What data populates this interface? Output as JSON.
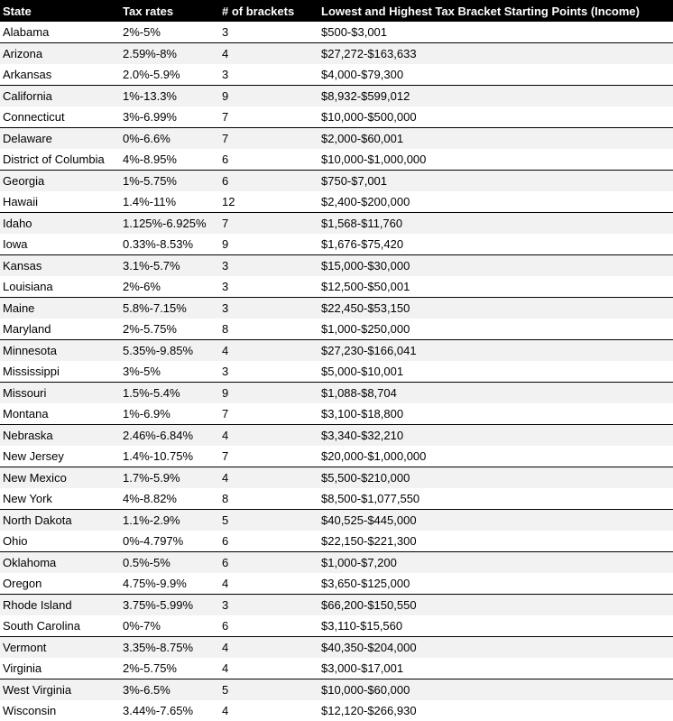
{
  "table": {
    "header": [
      "State",
      "Tax rates",
      "# of brackets",
      "Lowest and Highest Tax Bracket Starting Points (Income)"
    ],
    "rows": [
      [
        "Alabama",
        "2%-5%",
        "3",
        "$500-$3,001"
      ],
      [
        "Arizona",
        "2.59%-8%",
        "4",
        "$27,272-$163,633"
      ],
      [
        "Arkansas",
        "2.0%-5.9%",
        "3",
        "$4,000-$79,300"
      ],
      [
        "California",
        "1%-13.3%",
        "9",
        "$8,932-$599,012"
      ],
      [
        "Connecticut",
        "3%-6.99%",
        "7",
        "$10,000-$500,000"
      ],
      [
        "Delaware",
        "0%-6.6%",
        "7",
        "$2,000-$60,001"
      ],
      [
        "District of Columbia",
        "4%-8.95%",
        "6",
        "$10,000-$1,000,000"
      ],
      [
        "Georgia",
        "1%-5.75%",
        "6",
        "$750-$7,001"
      ],
      [
        "Hawaii",
        "1.4%-11%",
        "12",
        "$2,400-$200,000"
      ],
      [
        "Idaho",
        "1.125%-6.925%",
        "7",
        "$1,568-$11,760"
      ],
      [
        "Iowa",
        "0.33%-8.53%",
        "9",
        "$1,676-$75,420"
      ],
      [
        "Kansas",
        "3.1%-5.7%",
        "3",
        "$15,000-$30,000"
      ],
      [
        "Louisiana",
        "2%-6%",
        "3",
        "$12,500-$50,001"
      ],
      [
        "Maine",
        "5.8%-7.15%",
        "3",
        "$22,450-$53,150"
      ],
      [
        "Maryland",
        "2%-5.75%",
        "8",
        "$1,000-$250,000"
      ],
      [
        "Minnesota",
        "5.35%-9.85%",
        "4",
        "$27,230-$166,041"
      ],
      [
        "Mississippi",
        "3%-5%",
        "3",
        "$5,000-$10,001"
      ],
      [
        "Missouri",
        "1.5%-5.4%",
        "9",
        "$1,088-$8,704"
      ],
      [
        "Montana",
        "1%-6.9%",
        "7",
        "$3,100-$18,800"
      ],
      [
        "Nebraska",
        "2.46%-6.84%",
        "4",
        "$3,340-$32,210"
      ],
      [
        "New Jersey",
        "1.4%-10.75%",
        "7",
        "$20,000-$1,000,000"
      ],
      [
        "New Mexico",
        "1.7%-5.9%",
        "4",
        "$5,500-$210,000"
      ],
      [
        "New York",
        "4%-8.82%",
        "8",
        "$8,500-$1,077,550"
      ],
      [
        "North Dakota",
        "1.1%-2.9%",
        "5",
        "$40,525-$445,000"
      ],
      [
        "Ohio",
        "0%-4.797%",
        "6",
        "$22,150-$221,300"
      ],
      [
        "Oklahoma",
        "0.5%-5%",
        "6",
        "$1,000-$7,200"
      ],
      [
        "Oregon",
        "4.75%-9.9%",
        "4",
        "$3,650-$125,000"
      ],
      [
        "Rhode Island",
        "3.75%-5.99%",
        "3",
        "$66,200-$150,550"
      ],
      [
        "South Carolina",
        "0%-7%",
        "6",
        "$3,110-$15,560"
      ],
      [
        "Vermont",
        "3.35%-8.75%",
        "4",
        "$40,350-$204,000"
      ],
      [
        "Virginia",
        "2%-5.75%",
        "4",
        "$3,000-$17,001"
      ],
      [
        "West Virginia",
        "3%-6.5%",
        "5",
        "$10,000-$60,000"
      ],
      [
        "Wisconsin",
        "3.44%-7.65%",
        "4",
        "$12,120-$266,930"
      ]
    ]
  }
}
